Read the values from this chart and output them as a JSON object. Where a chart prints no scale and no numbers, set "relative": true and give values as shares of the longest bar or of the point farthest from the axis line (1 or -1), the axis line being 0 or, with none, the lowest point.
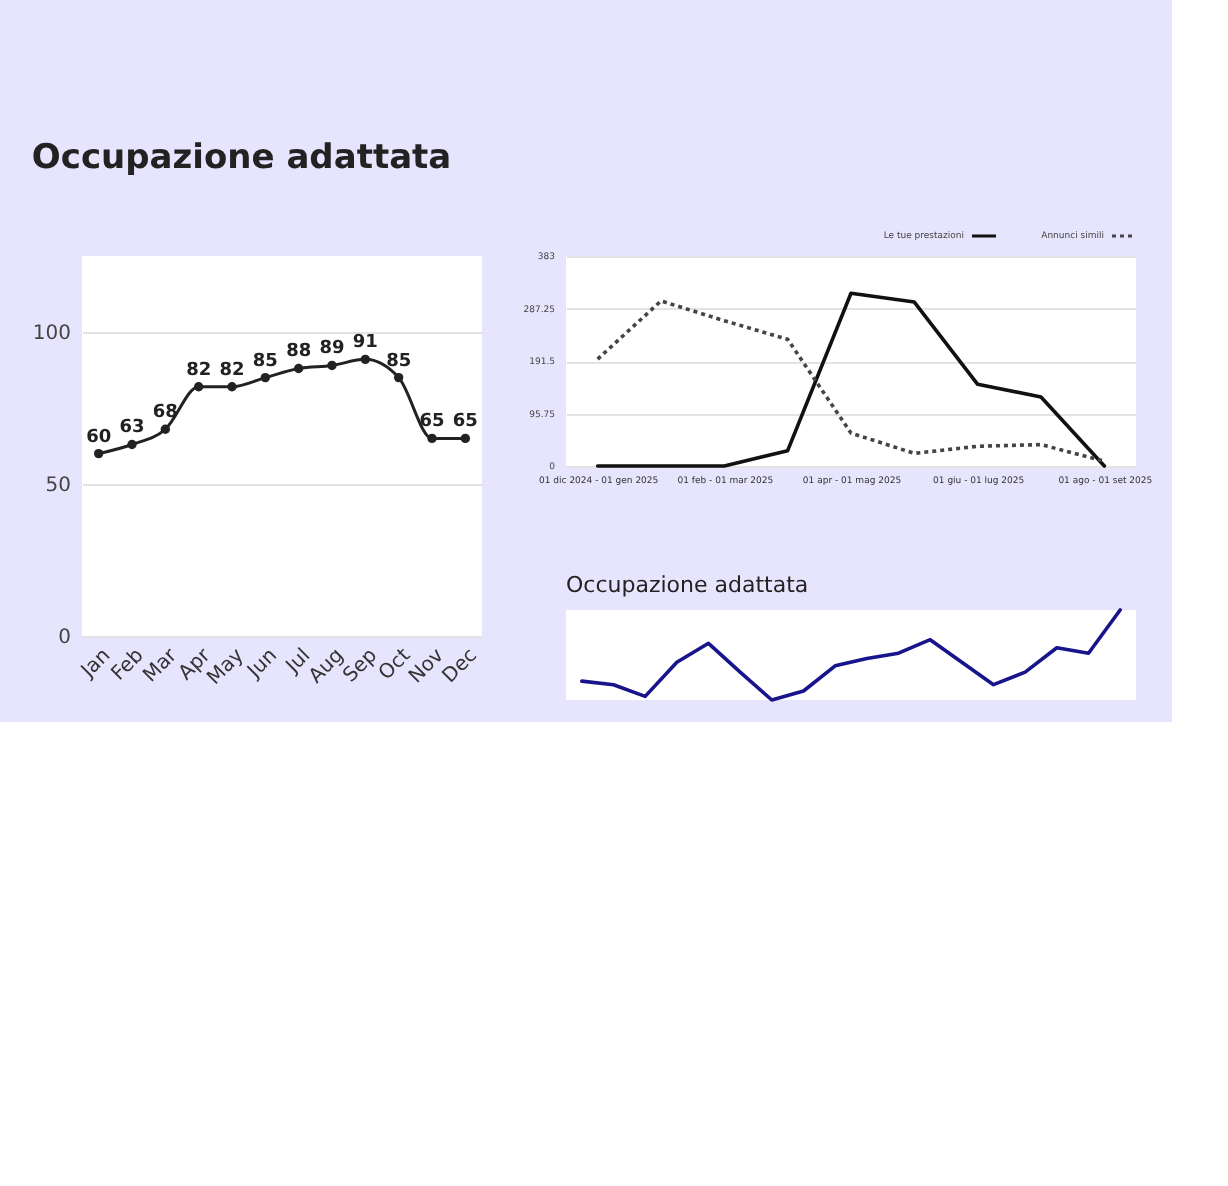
{
  "chart_data": [
    {
      "type": "line",
      "title": "Occupazione adattata",
      "categories": [
        "Jan",
        "Feb",
        "Mar",
        "Apr",
        "May",
        "Jun",
        "Jul",
        "Aug",
        "Sep",
        "Oct",
        "Nov",
        "Dec"
      ],
      "series": [
        {
          "color": "#222222",
          "values": [
            60,
            63,
            68,
            82,
            82,
            85,
            88,
            89,
            91,
            85,
            65,
            65
          ]
        }
      ],
      "ylim": [
        0,
        125
      ],
      "yticks": [
        0,
        50,
        100
      ],
      "grid": "y",
      "marker": "circle",
      "line_style": "solid",
      "data_labels": true,
      "legend": false
    },
    {
      "type": "line",
      "categories": [
        "01 dic 2024 - 01 gen 2025",
        null,
        "01 feb - 01 mar 2025",
        null,
        "01 apr - 01 mag 2025",
        null,
        "01 giu - 01 lug 2025",
        null,
        "01 ago - 01 set 2025"
      ],
      "series": [
        {
          "name": "Le tue prestazioni",
          "color": "#111111",
          "line_style": "solid",
          "values": [
            0,
            0,
            0,
            28,
            315,
            299,
            149,
            126,
            0
          ]
        },
        {
          "name": "Annunci simili",
          "color": "#444444",
          "line_style": "dotted",
          "values": [
            195,
            301,
            265,
            231,
            60,
            23,
            36,
            39,
            9
          ]
        }
      ],
      "ylim": [
        0,
        383
      ],
      "yticks": [
        0,
        95.75,
        191.5,
        287.25,
        383
      ],
      "grid": "y",
      "marker": "none",
      "legend": "top right"
    },
    {
      "type": "line",
      "title": "Occupazione adattata",
      "relative": true,
      "tick_labels": false,
      "categories": [
        null,
        null,
        null,
        null,
        null,
        null,
        null,
        null,
        null,
        null,
        null,
        null,
        null,
        null,
        null,
        null,
        null,
        null
      ],
      "series": [
        {
          "color": "#17148c",
          "values": [
            0.21,
            0.17,
            0.04,
            0.42,
            0.63,
            0.31,
            0,
            0.1,
            0.38,
            0.46,
            0.52,
            0.67,
            0.42,
            0.17,
            0.31,
            0.58,
            0.52,
            1
          ]
        }
      ],
      "grid": false,
      "marker": "none",
      "legend": false
    }
  ]
}
